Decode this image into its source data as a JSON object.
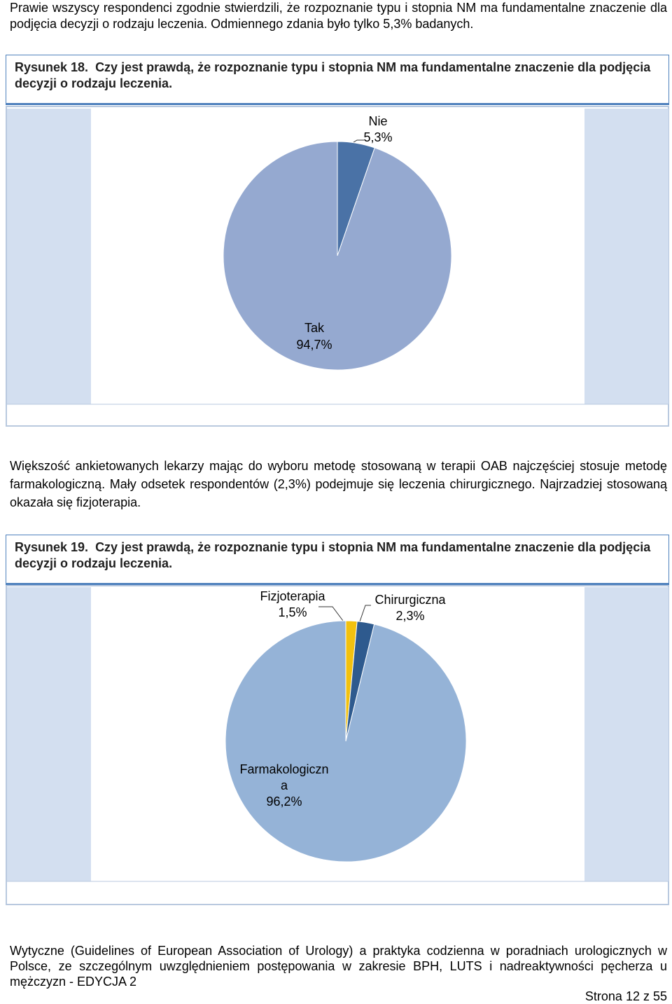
{
  "paragraphs": [
    "Prawie wszyscy respondenci zgodnie stwierdzili, że rozpoznanie typu i stopnia NM ma fundamentalne znaczenie dla podjęcia decyzji o rodzaju leczenia. Odmiennego zdania było tylko 5,3% badanych.",
    "Większość ankietowanych lekarzy mając do wyboru metodę stosowaną w terapii OAB najczęściej stosuje metodę farmakologiczną. Mały odsetek respondentów (2,3%) podejmuje się leczenia chirurgicznego. Najrzadziej stosowaną okazała się fizjoterapia."
  ],
  "figures": [
    {
      "label": "Rysunek 18.",
      "caption": "Czy jest prawdą, że rozpoznanie typu i stopnia NM ma fundamentalne znaczenie dla podjęcia decyzji o rodzaju leczenia."
    },
    {
      "label": "Rysunek 19.",
      "caption": "Czy jest prawdą, że rozpoznanie typu i stopnia NM ma fundamentalne znaczenie dla podjęcia decyzji o rodzaju leczenia."
    }
  ],
  "chart_data": [
    {
      "type": "pie",
      "categories": [
        "Nie",
        "Tak"
      ],
      "values": [
        5.3,
        94.7
      ],
      "value_labels": [
        "5,3%",
        "94,7%"
      ],
      "colors": [
        "#4a72a6",
        "#95a9d0"
      ]
    },
    {
      "type": "pie",
      "categories": [
        "Fizjoterapia",
        "Chirurgiczna",
        "Farmakologiczna"
      ],
      "values": [
        1.5,
        2.3,
        96.2
      ],
      "value_labels": [
        "1,5%",
        "2,3%",
        "96,2%"
      ],
      "colors": [
        "#f2c10f",
        "#2e5a8e",
        "#95b3d7"
      ]
    }
  ],
  "footer": {
    "text": "Wytyczne (Guidelines of European Association of Urology) a praktyka codzienna w poradniach urologicznych w Polsce, ze szczególnym uwzględnieniem postępowania w zakresie BPH, LUTS i nadreaktywności pęcherza u mężczyzn - EDYCJA 2",
    "page": "Strona 12 z 55"
  }
}
